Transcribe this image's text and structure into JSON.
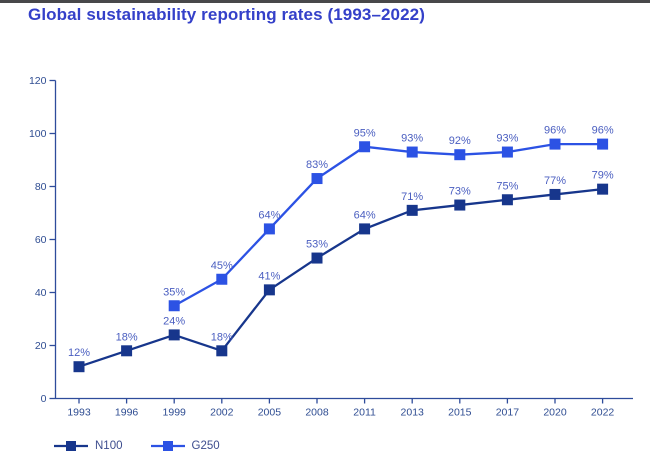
{
  "page": {
    "title": "Global sustainability reporting rates (1993–2022)"
  },
  "chart_data": {
    "type": "line",
    "title": "Global sustainability reporting rates (1993–2022)",
    "categories": [
      "1993",
      "1996",
      "1999",
      "2002",
      "2005",
      "2008",
      "2011",
      "2013",
      "2015",
      "2017",
      "2020",
      "2022"
    ],
    "series": [
      {
        "name": "N100",
        "color": "#17368c",
        "marker": "square",
        "values": [
          12,
          18,
          24,
          18,
          41,
          53,
          64,
          71,
          73,
          75,
          77,
          79
        ]
      },
      {
        "name": "G250",
        "color": "#2c52e4",
        "marker": "square",
        "values": [
          null,
          null,
          35,
          45,
          64,
          83,
          95,
          93,
          92,
          93,
          96,
          96
        ]
      }
    ],
    "ylim": [
      0,
      120
    ],
    "yticks": [
      0,
      20,
      40,
      60,
      80,
      100,
      120
    ],
    "xlabel": "",
    "ylabel": "",
    "data_label_suffix": "%",
    "grid": false,
    "legend_position": "bottom-left",
    "colors": {
      "title": "#3440c9",
      "axis": "#2e4c9b",
      "tick_labels": "#2f4d92",
      "data_labels": "#4a5ec0",
      "legend_text": "#3d4d8e"
    }
  }
}
